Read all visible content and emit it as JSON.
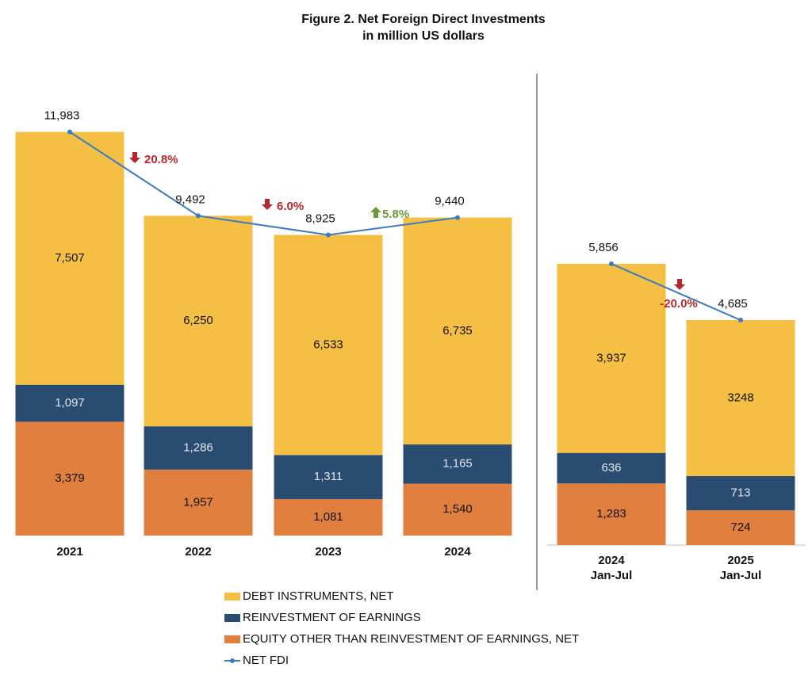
{
  "chart_data": [
    {
      "type": "stacked_bar_line",
      "title": "Figure 2. Net Foreign Direct Investments",
      "subtitle": "in million US dollars",
      "categories": [
        "2021",
        "2022",
        "2023",
        "2024"
      ],
      "ylim": [
        0,
        13500
      ],
      "series": [
        {
          "name": "EQUITY OTHER THAN REINVESTMENT OF EARNINGS, NET",
          "color": "#e07f3e",
          "values": [
            3379,
            1957,
            1081,
            1540
          ],
          "value_labels": [
            "3,379",
            "1,957",
            "1,081",
            "1,540"
          ]
        },
        {
          "name": "REINVESTMENT OF EARNINGS",
          "color": "#2b4c71",
          "values": [
            1097,
            1286,
            1311,
            1165
          ],
          "value_labels": [
            "1,097",
            "1,286",
            "1,311",
            "1,165"
          ]
        },
        {
          "name": "DEBT INSTRUMENTS, NET",
          "color": "#f4bf42",
          "values": [
            7507,
            6250,
            6533,
            6735
          ],
          "value_labels": [
            "7,507",
            "6,250",
            "6,533",
            "6,735"
          ]
        },
        {
          "name": "NET FDI",
          "color": "#3a7cc1",
          "type": "line",
          "values": [
            11983,
            9492,
            8925,
            9440
          ],
          "value_labels": [
            "11,983",
            "9,492",
            "8,925",
            "9,440"
          ]
        }
      ],
      "annotations": [
        {
          "text": "20.8%",
          "direction": "down"
        },
        {
          "text": "6.0%",
          "direction": "down"
        },
        {
          "text": "5.8%",
          "direction": "up"
        }
      ]
    },
    {
      "type": "stacked_bar_line",
      "categories": [
        "2024",
        "2025"
      ],
      "category_sublabels": [
        "Jan-Jul",
        "Jan-Jul"
      ],
      "ylim": [
        0,
        9800
      ],
      "series": [
        {
          "color": "#e07f3e",
          "values": [
            1283,
            724
          ],
          "value_labels": [
            "1,283",
            "724"
          ]
        },
        {
          "color": "#2b4c71",
          "values": [
            636,
            713
          ],
          "value_labels": [
            "636",
            "713"
          ]
        },
        {
          "color": "#f4bf42",
          "values": [
            3937,
            3248
          ],
          "value_labels": [
            "3,937",
            "3248"
          ]
        },
        {
          "color": "#3a7cc1",
          "type": "line",
          "values": [
            5856,
            4685
          ],
          "value_labels": [
            "5,856",
            "4,685"
          ]
        }
      ],
      "annotations": [
        {
          "text": "-20.0%",
          "direction": "down"
        }
      ]
    }
  ]
}
